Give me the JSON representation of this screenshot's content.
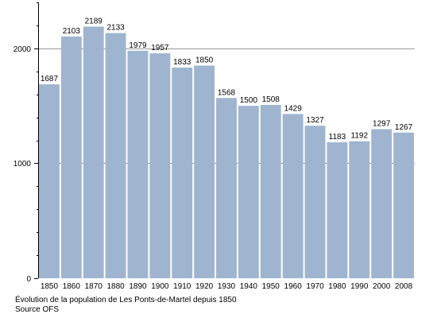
{
  "chart_data": {
    "type": "bar",
    "title": "",
    "xlabel": "",
    "ylabel": "",
    "categories": [
      "1850",
      "1860",
      "1870",
      "1880",
      "1890",
      "1900",
      "1910",
      "1920",
      "1930",
      "1940",
      "1950",
      "1960",
      "1970",
      "1980",
      "1990",
      "2000",
      "2008"
    ],
    "values": [
      1687,
      2103,
      2189,
      2133,
      1979,
      1957,
      1833,
      1850,
      1568,
      1500,
      1508,
      1429,
      1327,
      1183,
      1192,
      1297,
      1267
    ],
    "data_labels": [
      "1687",
      "2103",
      "2189",
      "2133",
      "1979",
      "1957",
      "1833",
      "1850",
      "1568",
      "1500",
      "1508",
      "1429",
      "1327",
      "1183",
      "1192",
      "1297",
      "1267"
    ],
    "ylim": [
      0,
      2400
    ],
    "yticks": [
      0,
      1000,
      2000
    ],
    "ytick_labels": [
      "0",
      "1000",
      "2000"
    ],
    "minor_ytick_step": 200,
    "gridlines": [
      1000,
      2000
    ],
    "gridline_color": "#999999",
    "bar_color": "#9fb5cf",
    "legend": "none"
  },
  "caption": {
    "line1": "Évolution de la population de Les Ponts-de-Martel depuis 1850",
    "line2": "Source OFS"
  }
}
